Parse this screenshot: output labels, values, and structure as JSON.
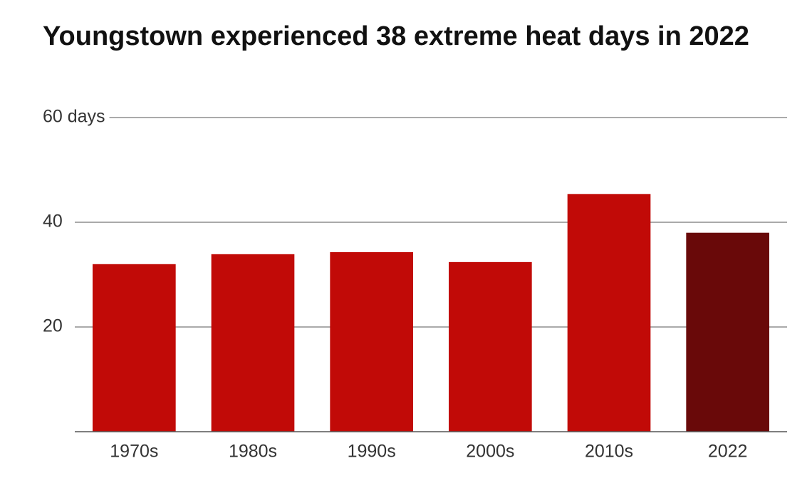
{
  "chart_data": {
    "type": "bar",
    "title": "Youngstown experienced 38 extreme heat days in 2022",
    "categories": [
      "1970s",
      "1980s",
      "1990s",
      "2000s",
      "2010s",
      "2022"
    ],
    "values": [
      32,
      33.9,
      34.3,
      32.4,
      45.4,
      38
    ],
    "colors": [
      "#c10a07",
      "#c10a07",
      "#c10a07",
      "#c10a07",
      "#c10a07",
      "#690909"
    ],
    "ylim": [
      0,
      60
    ],
    "yticks": [
      20,
      40,
      {
        "value": 60,
        "label": "60 days"
      }
    ],
    "grid": true
  }
}
